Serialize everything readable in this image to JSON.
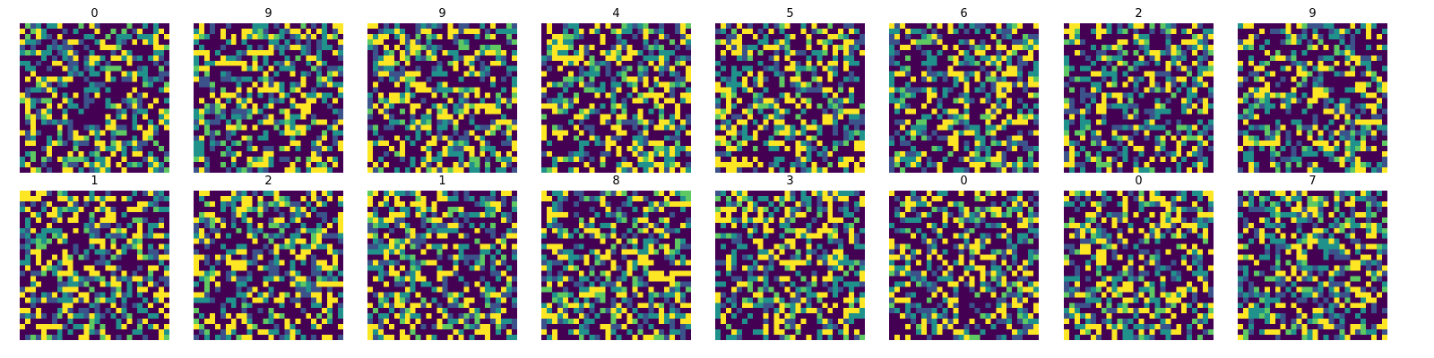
{
  "chart_data": {
    "type": "heatmap",
    "layout": {
      "rows": 2,
      "cols": 8
    },
    "colormap": "viridis",
    "palette": [
      "#440154",
      "#3b528b",
      "#21918c",
      "#5ec962",
      "#fde725"
    ],
    "grid_size": [
      28,
      28
    ],
    "value_range": [
      0,
      4
    ],
    "axes_visible": false,
    "panels": [
      {
        "title": "0",
        "seed": 101
      },
      {
        "title": "9",
        "seed": 202
      },
      {
        "title": "9",
        "seed": 303
      },
      {
        "title": "4",
        "seed": 404
      },
      {
        "title": "5",
        "seed": 505
      },
      {
        "title": "6",
        "seed": 606
      },
      {
        "title": "2",
        "seed": 707
      },
      {
        "title": "9",
        "seed": 808
      },
      {
        "title": "1",
        "seed": 909
      },
      {
        "title": "2",
        "seed": 1010
      },
      {
        "title": "1",
        "seed": 1111
      },
      {
        "title": "8",
        "seed": 1212
      },
      {
        "title": "3",
        "seed": 1313
      },
      {
        "title": "0",
        "seed": 1414
      },
      {
        "title": "0",
        "seed": 1515
      },
      {
        "title": "7",
        "seed": 1616
      }
    ]
  }
}
